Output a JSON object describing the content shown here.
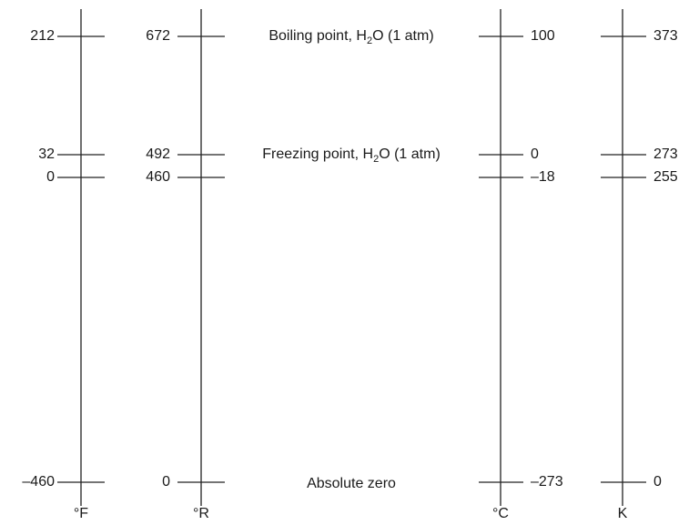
{
  "scales": {
    "fahrenheit": {
      "unit": "°F",
      "values": [
        "212",
        "32",
        "0",
        "–460"
      ]
    },
    "rankine": {
      "unit": "°R",
      "values": [
        "672",
        "492",
        "460",
        "0"
      ]
    },
    "celsius": {
      "unit": "°C",
      "values": [
        "100",
        "0",
        "–18",
        "–273"
      ]
    },
    "kelvin": {
      "unit": "K",
      "values": [
        "373",
        "273",
        "255",
        "0"
      ]
    }
  },
  "reference_points": {
    "boiling": {
      "prefix": "Boiling point, H",
      "subscript": "2",
      "suffix": "O (1 atm)"
    },
    "freezing": {
      "prefix": "Freezing point, H",
      "subscript": "2",
      "suffix": "O (1 atm)"
    },
    "absolute_zero": {
      "text": "Absolute zero"
    }
  }
}
